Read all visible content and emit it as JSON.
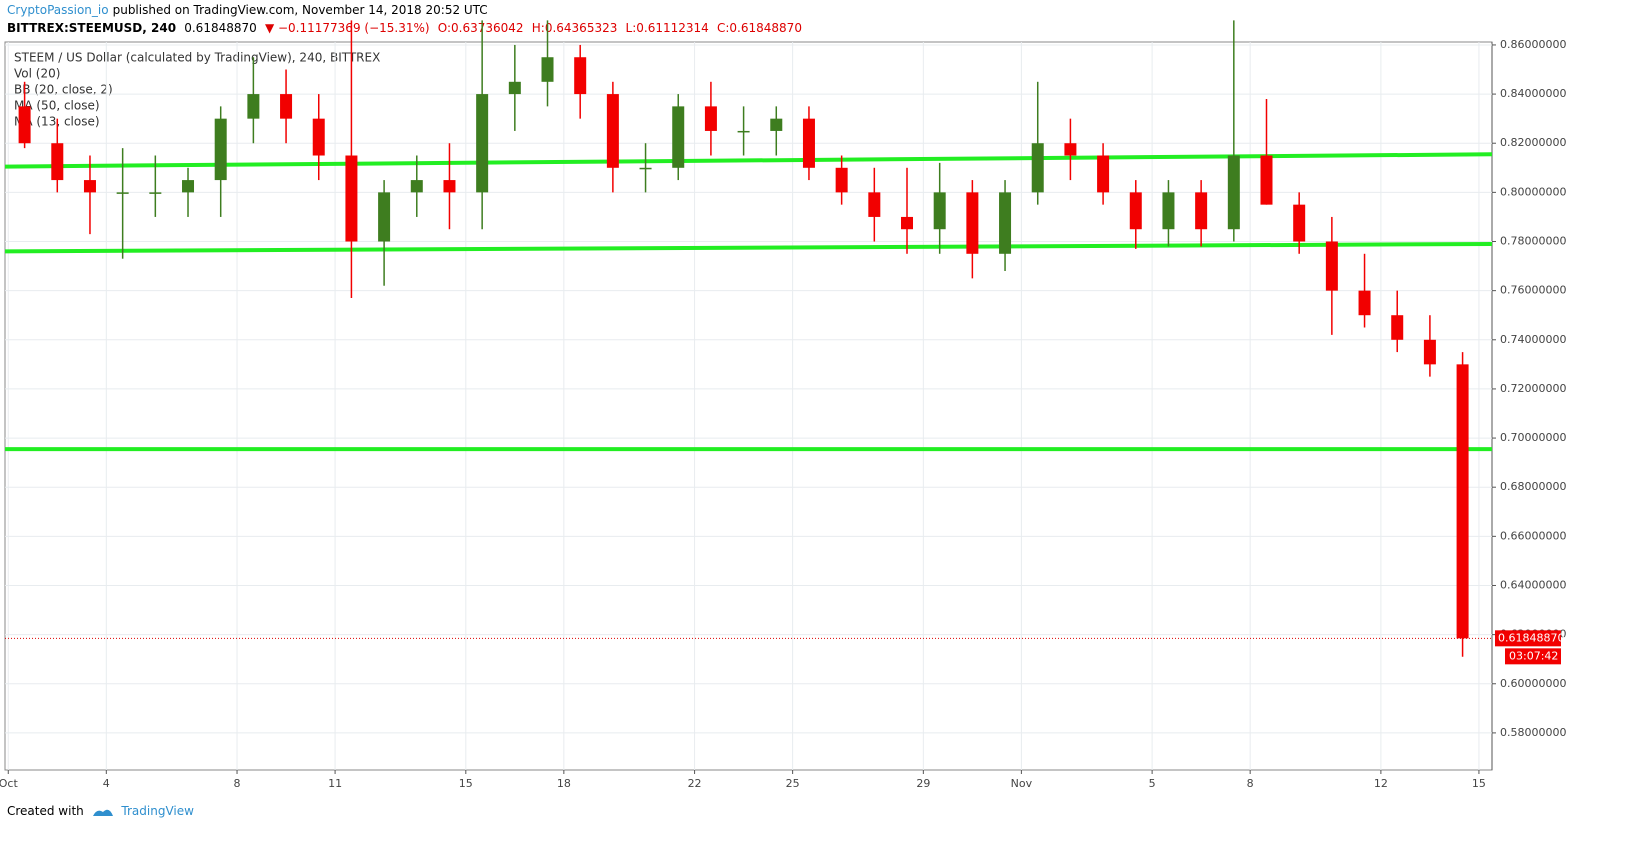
{
  "header": {
    "author": "CryptoPassion_io",
    "published": "published on TradingView.com, November 14, 2018 20:52 UTC",
    "symbol": "BITTREX:STEEMUSD, 240",
    "price": "0.61848870",
    "change": "▼ −0.11177369 (−15.31%)",
    "open": "O:0.63736042",
    "high": "H:0.64365323",
    "low": "L:0.61112314",
    "close": "C:0.61848870"
  },
  "chart_data": {
    "type": "candlestick",
    "title": "STEEM / US Dollar (calculated by TradingView), 240, BITTREX",
    "indicators": [
      "Vol (20)",
      "BB (20, close, 2)",
      "MA (50, close)",
      "MA (13, close)"
    ],
    "x": [
      0.5,
      1.5,
      2.5,
      3.5,
      4.5,
      5.5,
      6.5,
      7.5,
      8.5,
      9.5,
      10.5,
      11.5,
      12.5,
      13.5,
      14.5,
      15.5,
      16.5,
      17.5,
      18.5,
      19.5,
      20.5,
      21.5,
      22.5,
      23.5,
      24.5,
      25.5,
      26.5,
      27.5,
      28.5,
      29.5,
      30.5,
      31.5,
      32.5,
      33.5,
      34.5,
      35.5,
      36.5,
      37.5,
      38.5,
      39.5,
      40.5,
      41.5,
      42.5,
      43.5,
      44.5
    ],
    "open": [
      0.835,
      0.82,
      0.805,
      0.8,
      0.8,
      0.8,
      0.805,
      0.83,
      0.84,
      0.83,
      0.815,
      0.78,
      0.8,
      0.805,
      0.8,
      0.84,
      0.845,
      0.855,
      0.84,
      0.81,
      0.81,
      0.835,
      0.825,
      0.825,
      0.83,
      0.81,
      0.8,
      0.79,
      0.785,
      0.8,
      0.775,
      0.8,
      0.82,
      0.815,
      0.8,
      0.785,
      0.8,
      0.785,
      0.815,
      0.795,
      0.78,
      0.76,
      0.75,
      0.74,
      0.73
    ],
    "high": [
      0.845,
      0.83,
      0.815,
      0.818,
      0.815,
      0.81,
      0.835,
      0.855,
      0.85,
      0.84,
      0.87,
      0.805,
      0.815,
      0.82,
      0.87,
      0.86,
      0.87,
      0.86,
      0.845,
      0.82,
      0.84,
      0.845,
      0.835,
      0.835,
      0.835,
      0.815,
      0.81,
      0.81,
      0.812,
      0.805,
      0.805,
      0.845,
      0.83,
      0.82,
      0.805,
      0.805,
      0.805,
      0.87,
      0.838,
      0.8,
      0.79,
      0.775,
      0.76,
      0.75,
      0.735
    ],
    "low": [
      0.818,
      0.8,
      0.783,
      0.773,
      0.79,
      0.79,
      0.79,
      0.82,
      0.82,
      0.805,
      0.757,
      0.762,
      0.79,
      0.785,
      0.785,
      0.825,
      0.835,
      0.83,
      0.8,
      0.8,
      0.805,
      0.815,
      0.815,
      0.815,
      0.805,
      0.795,
      0.78,
      0.775,
      0.775,
      0.765,
      0.768,
      0.795,
      0.805,
      0.795,
      0.777,
      0.778,
      0.778,
      0.78,
      0.795,
      0.775,
      0.742,
      0.745,
      0.735,
      0.725,
      0.611
    ],
    "close": [
      0.82,
      0.805,
      0.8,
      0.8,
      0.8,
      0.805,
      0.83,
      0.84,
      0.83,
      0.815,
      0.78,
      0.8,
      0.805,
      0.8,
      0.84,
      0.845,
      0.855,
      0.84,
      0.81,
      0.81,
      0.835,
      0.825,
      0.825,
      0.83,
      0.81,
      0.8,
      0.79,
      0.785,
      0.8,
      0.775,
      0.8,
      0.82,
      0.815,
      0.8,
      0.785,
      0.8,
      0.785,
      0.815,
      0.795,
      0.78,
      0.76,
      0.75,
      0.74,
      0.73,
      0.6184887
    ],
    "up_color": "#3e7d1f",
    "down_color": "#f20000",
    "levels": [
      {
        "x": [
          -0.1,
          45.4
        ],
        "y": [
          0.8105,
          0.8155
        ]
      },
      {
        "x": [
          -0.1,
          45.4
        ],
        "y": [
          0.776,
          0.779
        ]
      },
      {
        "x": [
          -0.1,
          45.4
        ],
        "y": [
          0.6955,
          0.6955
        ]
      }
    ],
    "level_color": "#22ee22",
    "last_price": 0.6184887,
    "last_price_label": "0.61848870",
    "countdown": "03:07:42",
    "xlim": [
      -0.1,
      45.4
    ],
    "xticks": [
      {
        "value": 0,
        "label": "Oct"
      },
      {
        "value": 3,
        "label": "4"
      },
      {
        "value": 7,
        "label": "8"
      },
      {
        "value": 10,
        "label": "11"
      },
      {
        "value": 14,
        "label": "15"
      },
      {
        "value": 17,
        "label": "18"
      },
      {
        "value": 21,
        "label": "22"
      },
      {
        "value": 24,
        "label": "25"
      },
      {
        "value": 28,
        "label": "29"
      },
      {
        "value": 31,
        "label": "Nov"
      },
      {
        "value": 35,
        "label": "5"
      },
      {
        "value": 38,
        "label": "8"
      },
      {
        "value": 42,
        "label": "12"
      },
      {
        "value": 45,
        "label": "15"
      }
    ],
    "ylim": [
      0.5649,
      0.8612
    ],
    "yticks": [
      {
        "value": 0.58,
        "label": "0.58000000"
      },
      {
        "value": 0.6,
        "label": "0.60000000"
      },
      {
        "value": 0.62,
        "label": "0.62000000"
      },
      {
        "value": 0.64,
        "label": "0.64000000"
      },
      {
        "value": 0.66,
        "label": "0.66000000"
      },
      {
        "value": 0.68,
        "label": "0.68000000"
      },
      {
        "value": 0.7,
        "label": "0.70000000"
      },
      {
        "value": 0.72,
        "label": "0.72000000"
      },
      {
        "value": 0.74,
        "label": "0.74000000"
      },
      {
        "value": 0.76,
        "label": "0.76000000"
      },
      {
        "value": 0.78,
        "label": "0.78000000"
      },
      {
        "value": 0.8,
        "label": "0.80000000"
      },
      {
        "value": 0.82,
        "label": "0.82000000"
      },
      {
        "value": 0.84,
        "label": "0.84000000"
      },
      {
        "value": 0.86,
        "label": "0.86000000"
      }
    ],
    "grid": true
  },
  "footer": {
    "created": "Created with",
    "brand": "TradingView"
  }
}
